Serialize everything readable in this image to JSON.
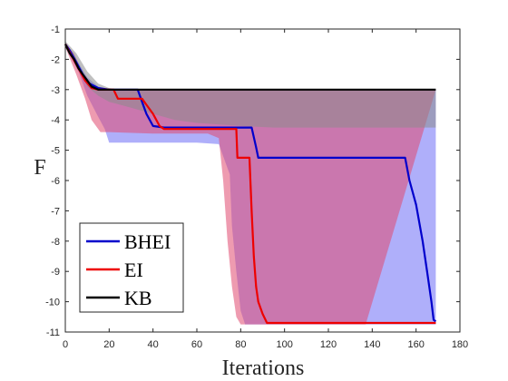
{
  "chart_data": {
    "type": "line",
    "xlabel": "Iterations",
    "ylabel": "F",
    "xlim": [
      0,
      180
    ],
    "ylim": [
      -11,
      -1
    ],
    "xticks": [
      0,
      20,
      40,
      60,
      80,
      100,
      120,
      140,
      160,
      180
    ],
    "yticks": [
      -1,
      -2,
      -3,
      -4,
      -5,
      -6,
      -7,
      -8,
      -9,
      -10,
      -11
    ],
    "grid": false,
    "legend_position": "bottom-left",
    "series": [
      {
        "name": "BHEI",
        "color": "#0000cc",
        "band_color": "#6e6ef5",
        "mean": [
          [
            0,
            -1.5
          ],
          [
            2,
            -1.7
          ],
          [
            5,
            -2.1
          ],
          [
            8,
            -2.5
          ],
          [
            11,
            -2.8
          ],
          [
            15,
            -2.95
          ],
          [
            20,
            -3.0
          ],
          [
            33,
            -3.0
          ],
          [
            35,
            -3.4
          ],
          [
            37,
            -3.8
          ],
          [
            40,
            -4.2
          ],
          [
            45,
            -4.25
          ],
          [
            85,
            -4.25
          ],
          [
            87,
            -4.9
          ],
          [
            88,
            -5.25
          ],
          [
            155,
            -5.25
          ],
          [
            157,
            -6.0
          ],
          [
            160,
            -6.8
          ],
          [
            163,
            -8.0
          ],
          [
            165,
            -9.0
          ],
          [
            167,
            -10.0
          ],
          [
            168,
            -10.6
          ],
          [
            169,
            -10.65
          ]
        ],
        "upper": [
          [
            0,
            -1.5
          ],
          [
            5,
            -2.0
          ],
          [
            10,
            -2.6
          ],
          [
            15,
            -2.9
          ],
          [
            20,
            -3.0
          ],
          [
            169,
            -3.0
          ]
        ],
        "lower": [
          [
            0,
            -1.6
          ],
          [
            6,
            -2.4
          ],
          [
            10,
            -3.2
          ],
          [
            15,
            -3.9
          ],
          [
            18,
            -4.3
          ],
          [
            20,
            -4.75
          ],
          [
            60,
            -4.75
          ],
          [
            70,
            -4.8
          ],
          [
            75,
            -5.8
          ],
          [
            76,
            -7.5
          ],
          [
            78,
            -9.0
          ],
          [
            80,
            -10.3
          ],
          [
            82,
            -10.75
          ],
          [
            169,
            -10.75
          ]
        ]
      },
      {
        "name": "EI",
        "color": "#ee0000",
        "band_color": "#e04870",
        "mean": [
          [
            0,
            -1.5
          ],
          [
            3,
            -1.9
          ],
          [
            6,
            -2.3
          ],
          [
            9,
            -2.7
          ],
          [
            12,
            -2.95
          ],
          [
            15,
            -3.0
          ],
          [
            22,
            -3.0
          ],
          [
            24,
            -3.3
          ],
          [
            35,
            -3.3
          ],
          [
            37,
            -3.5
          ],
          [
            40,
            -3.8
          ],
          [
            43,
            -4.2
          ],
          [
            45,
            -4.3
          ],
          [
            78,
            -4.3
          ],
          [
            78.5,
            -5.25
          ],
          [
            84,
            -5.25
          ],
          [
            85,
            -7.0
          ],
          [
            86,
            -8.5
          ],
          [
            87,
            -9.5
          ],
          [
            88,
            -10.0
          ],
          [
            90,
            -10.4
          ],
          [
            92,
            -10.7
          ],
          [
            169,
            -10.7
          ]
        ],
        "upper": [
          [
            0,
            -1.5
          ],
          [
            4,
            -1.8
          ],
          [
            8,
            -2.5
          ],
          [
            12,
            -2.9
          ],
          [
            15,
            -3.0
          ],
          [
            169,
            -3.0
          ]
        ],
        "lower": [
          [
            0,
            -1.6
          ],
          [
            5,
            -2.5
          ],
          [
            9,
            -3.3
          ],
          [
            12,
            -4.0
          ],
          [
            16,
            -4.4
          ],
          [
            20,
            -4.4
          ],
          [
            40,
            -4.45
          ],
          [
            65,
            -4.45
          ],
          [
            70,
            -4.6
          ],
          [
            72,
            -6.0
          ],
          [
            74,
            -8.0
          ],
          [
            76,
            -9.5
          ],
          [
            78,
            -10.5
          ],
          [
            80,
            -10.75
          ],
          [
            137,
            -10.75
          ]
        ]
      },
      {
        "name": "KB",
        "color": "#000000",
        "band_color": "#8c8c8c",
        "mean": [
          [
            0,
            -1.5
          ],
          [
            2,
            -1.8
          ],
          [
            4,
            -2.0
          ],
          [
            6,
            -2.3
          ],
          [
            8,
            -2.5
          ],
          [
            10,
            -2.7
          ],
          [
            12,
            -2.9
          ],
          [
            15,
            -3.0
          ],
          [
            169,
            -3.0
          ]
        ],
        "upper": [
          [
            0,
            -1.4
          ],
          [
            5,
            -1.8
          ],
          [
            10,
            -2.4
          ],
          [
            15,
            -2.8
          ],
          [
            20,
            -2.95
          ],
          [
            25,
            -3.0
          ],
          [
            169,
            -3.0
          ]
        ],
        "lower": [
          [
            0,
            -1.6
          ],
          [
            5,
            -2.2
          ],
          [
            10,
            -2.9
          ],
          [
            15,
            -3.2
          ],
          [
            20,
            -3.4
          ],
          [
            30,
            -3.6
          ],
          [
            40,
            -3.8
          ],
          [
            50,
            -4.0
          ],
          [
            60,
            -4.1
          ],
          [
            80,
            -4.2
          ],
          [
            95,
            -4.25
          ],
          [
            169,
            -4.25
          ]
        ]
      }
    ]
  }
}
